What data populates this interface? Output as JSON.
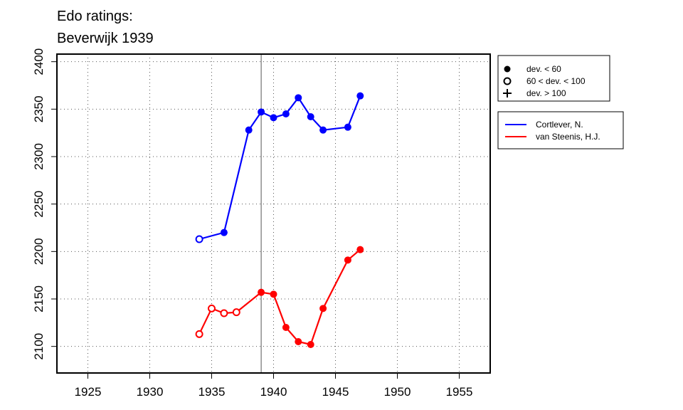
{
  "chart_data": {
    "type": "line",
    "title_lines": [
      "Edo ratings:",
      "Beverwijk 1939"
    ],
    "xlabel": "",
    "ylabel": "",
    "xlim": [
      1922.5,
      1957.5
    ],
    "ylim": [
      2072,
      2408
    ],
    "x_ticks": [
      1925,
      1930,
      1935,
      1940,
      1945,
      1950,
      1955
    ],
    "y_ticks": [
      2100,
      2150,
      2200,
      2250,
      2300,
      2350,
      2400
    ],
    "grid": true,
    "grid_style": "dotted",
    "event_line_x": 1939,
    "series": [
      {
        "name": "Cortlever, N.",
        "color": "#0000ff",
        "points": [
          {
            "x": 1934,
            "y": 2213,
            "dev": "60-100"
          },
          {
            "x": 1936,
            "y": 2220,
            "dev": "<60"
          },
          {
            "x": 1938,
            "y": 2328,
            "dev": "<60"
          },
          {
            "x": 1939,
            "y": 2347,
            "dev": "<60"
          },
          {
            "x": 1940,
            "y": 2341,
            "dev": "<60"
          },
          {
            "x": 1941,
            "y": 2345,
            "dev": "<60"
          },
          {
            "x": 1942,
            "y": 2362,
            "dev": "<60"
          },
          {
            "x": 1943,
            "y": 2342,
            "dev": "<60"
          },
          {
            "x": 1944,
            "y": 2328,
            "dev": "<60"
          },
          {
            "x": 1946,
            "y": 2331,
            "dev": "<60"
          },
          {
            "x": 1947,
            "y": 2364,
            "dev": "<60"
          }
        ]
      },
      {
        "name": "van Steenis, H.J.",
        "color": "#ff0000",
        "points": [
          {
            "x": 1934,
            "y": 2113,
            "dev": "60-100"
          },
          {
            "x": 1935,
            "y": 2140,
            "dev": "60-100"
          },
          {
            "x": 1936,
            "y": 2135,
            "dev": "60-100"
          },
          {
            "x": 1937,
            "y": 2136,
            "dev": "60-100"
          },
          {
            "x": 1939,
            "y": 2157,
            "dev": "<60"
          },
          {
            "x": 1940,
            "y": 2155,
            "dev": "<60"
          },
          {
            "x": 1941,
            "y": 2120,
            "dev": "<60"
          },
          {
            "x": 1942,
            "y": 2105,
            "dev": "<60"
          },
          {
            "x": 1943,
            "y": 2102,
            "dev": "<60"
          },
          {
            "x": 1944,
            "y": 2140,
            "dev": "<60"
          },
          {
            "x": 1946,
            "y": 2191,
            "dev": "<60"
          },
          {
            "x": 1947,
            "y": 2202,
            "dev": "<60"
          }
        ]
      }
    ],
    "symbol_legend": {
      "placement": "top-right, outside plot",
      "items": [
        {
          "symbol": "filled-circle",
          "label": "dev. < 60"
        },
        {
          "symbol": "open-circle",
          "label": "60 < dev. < 100"
        },
        {
          "symbol": "plus",
          "label": "dev. > 100"
        }
      ]
    },
    "series_legend": {
      "placement": "right, outside plot"
    }
  }
}
